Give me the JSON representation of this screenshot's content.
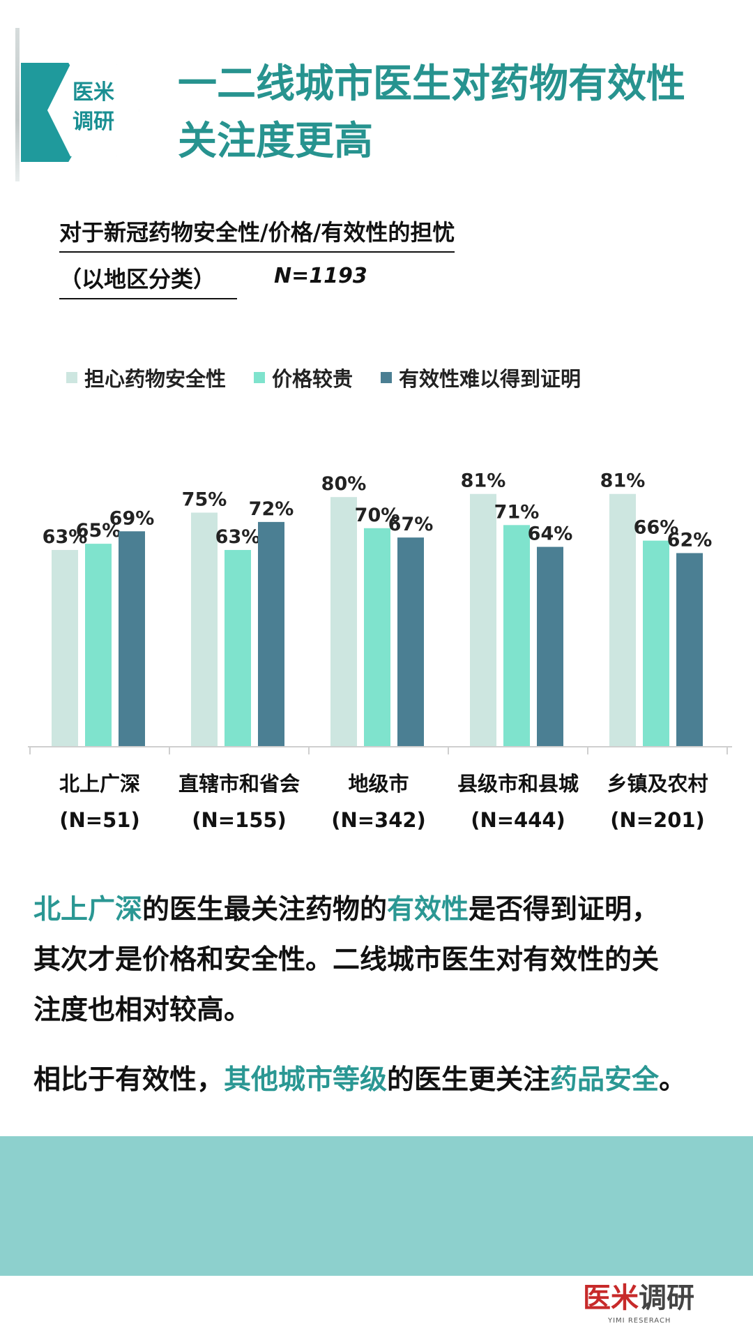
{
  "badge": {
    "line1": "医米",
    "line2": "调研"
  },
  "header": {
    "title_line1": "一二线城市医生对药物有效性",
    "title_line2": "关注度更高"
  },
  "subtitle": {
    "line1": "对于新冠药物安全性/价格/有效性的担忧",
    "line2": "（以地区分类）",
    "n_total": "N=1193"
  },
  "colors": {
    "series1": "#cde6e0",
    "series2": "#7fe3cd",
    "series3": "#4b7f93",
    "highlight": "#2a9793",
    "band": "#8dd0cd"
  },
  "chart_data": {
    "type": "bar",
    "categories": [
      "北上广深",
      "直辖市和省会",
      "地级市",
      "县级市和县城",
      "乡镇及农村"
    ],
    "category_n": [
      "(N=51)",
      "(N=155)",
      "(N=342)",
      "(N=444)",
      "(N=201)"
    ],
    "series": [
      {
        "name": "担心药物安全性",
        "values": [
          63,
          75,
          80,
          81,
          81
        ]
      },
      {
        "name": "价格较贵",
        "values": [
          65,
          63,
          70,
          71,
          66
        ]
      },
      {
        "name": "有效性难以得到证明",
        "values": [
          69,
          72,
          67,
          64,
          62
        ]
      }
    ],
    "value_suffix": "%",
    "ylim": [
      0,
      100
    ],
    "legend_position": "top",
    "grid": false
  },
  "text": {
    "p1_part1": "北上广深",
    "p1_part2": "的医生最关注药物的",
    "p1_part3": "有效性",
    "p1_part4": "是否得到证明，",
    "p1_line2": "其次才是价格和安全性。二线城市医生对有效性的关",
    "p1_line3": "注度也相对较高。",
    "p2_part1": "相比于有效性，",
    "p2_part2": "其他城市等级",
    "p2_part3": "的医生更关注",
    "p2_part4": "药品安全",
    "p2_part5": "。"
  },
  "footer": {
    "logo_red": "医米",
    "logo_dark": "调研",
    "logo_sub": "YIMI RESERACH"
  }
}
